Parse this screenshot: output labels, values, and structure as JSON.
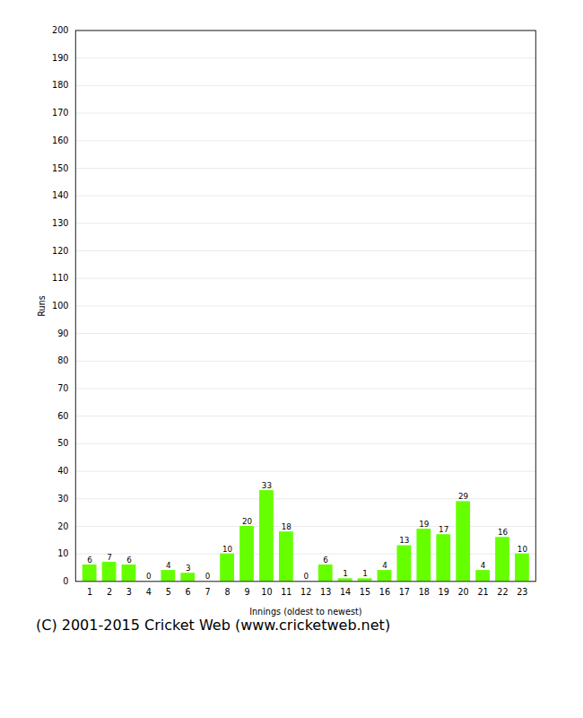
{
  "chart_data": {
    "type": "bar",
    "xlabel": "Innings (oldest to newest)",
    "ylabel": "Runs",
    "caption": "(C) 2001-2015 Cricket Web (www.cricketweb.net)",
    "categories": [
      1,
      2,
      3,
      4,
      5,
      6,
      7,
      8,
      9,
      10,
      11,
      12,
      13,
      14,
      15,
      16,
      17,
      18,
      19,
      20,
      21,
      22,
      23
    ],
    "values": [
      6,
      7,
      6,
      0,
      4,
      3,
      0,
      10,
      20,
      33,
      18,
      0,
      6,
      1,
      1,
      4,
      13,
      19,
      17,
      29,
      4,
      16,
      10
    ],
    "color": "#66ff00",
    "ylim": [
      0,
      200
    ],
    "yticks": [
      0,
      10,
      20,
      30,
      40,
      50,
      60,
      70,
      80,
      90,
      100,
      110,
      120,
      130,
      140,
      150,
      160,
      170,
      180,
      190,
      200
    ],
    "grid": true,
    "data_labels": true
  }
}
